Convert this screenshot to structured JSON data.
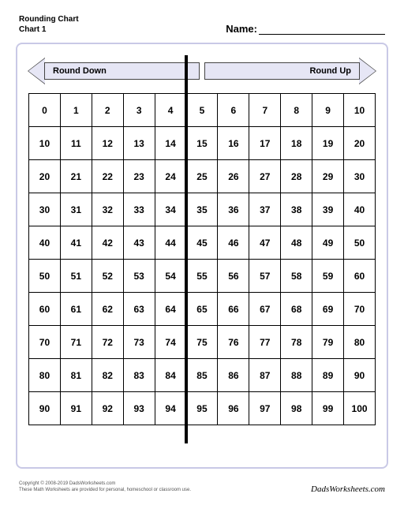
{
  "header": {
    "title_line1": "Rounding Chart",
    "title_line2": "Chart 1",
    "name_label": "Name:"
  },
  "arrows": {
    "left_label": "Round Down",
    "right_label": "Round Up",
    "fill_color": "#e6e6f5",
    "border_color": "#444444"
  },
  "grid": {
    "type": "table",
    "columns": 11,
    "rows_count": 10,
    "divider_after_col": 5,
    "cell_border": "#000000",
    "font_weight": "bold",
    "rows": [
      [
        0,
        1,
        2,
        3,
        4,
        5,
        6,
        7,
        8,
        9,
        10
      ],
      [
        10,
        11,
        12,
        13,
        14,
        15,
        16,
        17,
        18,
        19,
        20
      ],
      [
        20,
        21,
        22,
        23,
        24,
        25,
        26,
        27,
        28,
        29,
        30
      ],
      [
        30,
        31,
        32,
        33,
        34,
        35,
        36,
        37,
        38,
        39,
        40
      ],
      [
        40,
        41,
        42,
        43,
        44,
        45,
        46,
        47,
        48,
        49,
        50
      ],
      [
        50,
        51,
        52,
        53,
        54,
        55,
        56,
        57,
        58,
        59,
        60
      ],
      [
        60,
        61,
        62,
        63,
        64,
        65,
        66,
        67,
        68,
        69,
        70
      ],
      [
        70,
        71,
        72,
        73,
        74,
        75,
        76,
        77,
        78,
        79,
        80
      ],
      [
        80,
        81,
        82,
        83,
        84,
        85,
        86,
        87,
        88,
        89,
        90
      ],
      [
        90,
        91,
        92,
        93,
        94,
        95,
        96,
        97,
        98,
        99,
        100
      ]
    ]
  },
  "frame": {
    "border_color": "#c9c9e6",
    "background": "#ffffff"
  },
  "footer": {
    "copyright": "Copyright © 2008-2019 DadsWorksheets.com",
    "note": "These Math Worksheets are provided for personal, homeschool or classroom use.",
    "logo_text": "DadsWorksheets.com"
  }
}
